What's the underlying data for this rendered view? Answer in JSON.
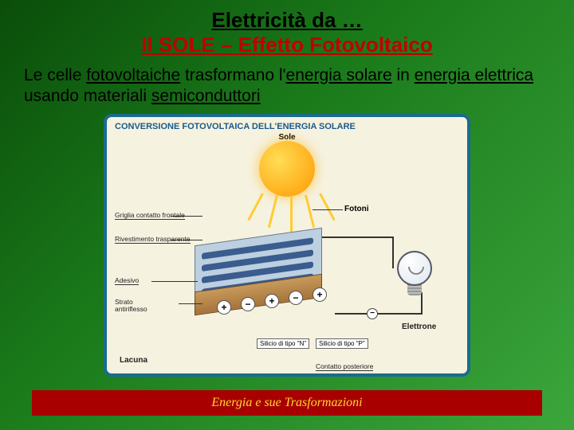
{
  "slide": {
    "title_line1": "Elettricità da …",
    "title_line2": "Il SOLE – Effetto Fotovoltaico",
    "body_parts": {
      "t1": "Le celle ",
      "u1": "fotovoltaiche",
      "t2": " trasformano l'",
      "u2": "energia solare",
      "t3": " in ",
      "u3": "energia elettrica",
      "t4": " usando materiali ",
      "u4": "semiconduttori"
    },
    "footer": "Energia e sue Trasformazioni",
    "background_gradient": [
      "#0a4d0a",
      "#1a7a1a",
      "#3ca63c"
    ],
    "title_color": "#c00000",
    "footer_bg": "#a80000",
    "footer_color": "#ffd633"
  },
  "diagram": {
    "type": "infographic",
    "title": "CONVERSIONE FOTOVOLTAICA DELL'ENERGIA SOLARE",
    "border_color": "#1a6b8f",
    "background_color": "#f6f2e0",
    "sun": {
      "label": "Sole",
      "colors": [
        "#ffdd55",
        "#ff9900"
      ]
    },
    "photons": {
      "label": "Fotoni",
      "color": "#ffcc33",
      "count": 5
    },
    "cell": {
      "top_color": "#bcd0e0",
      "finger_color": "#3a5c8e",
      "side_colors": [
        "#c79a5b",
        "#a6733a"
      ],
      "fingers": 4
    },
    "labels": {
      "griglia": "Griglia contatto frontale",
      "rivestimento": "Rivestimento trasparente",
      "adesivo": "Adesivo",
      "strato": "Strato\nantiriflesso",
      "lacuna": "Lacuna",
      "silicio_n": "Silicio di tipo \"N\"",
      "silicio_p": "Silicio di tipo \"P\"",
      "contatto_post": "Contatto posteriore",
      "elettrone": "Elettrone"
    },
    "charges": {
      "sequence": [
        "+",
        "−",
        "+",
        "−",
        "+"
      ]
    },
    "bulb": {
      "glass_color": "#dbe6ee",
      "border_color": "#556"
    },
    "electron_symbol": "−",
    "wire_color": "#333333"
  }
}
